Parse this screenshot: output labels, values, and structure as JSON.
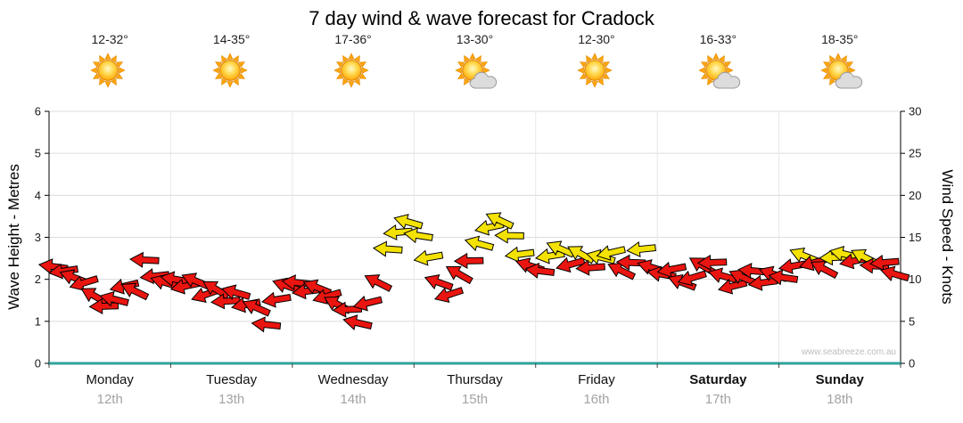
{
  "title": "7 day wind & wave forecast for Cradock",
  "watermark": "www.seabreeze.com.au",
  "days": [
    {
      "name": "Monday",
      "date": "12th",
      "temp": "12-32°",
      "icon": "sunny",
      "bold": false
    },
    {
      "name": "Tuesday",
      "date": "13th",
      "temp": "14-35°",
      "icon": "sunny",
      "bold": false
    },
    {
      "name": "Wednesday",
      "date": "14th",
      "temp": "17-36°",
      "icon": "sunny",
      "bold": false
    },
    {
      "name": "Thursday",
      "date": "15th",
      "temp": "13-30°",
      "icon": "partly-cloudy",
      "bold": false
    },
    {
      "name": "Friday",
      "date": "16th",
      "temp": "12-30°",
      "icon": "sunny",
      "bold": false
    },
    {
      "name": "Saturday",
      "date": "17th",
      "temp": "16-33°",
      "icon": "partly-cloudy",
      "bold": true
    },
    {
      "name": "Sunday",
      "date": "18th",
      "temp": "18-35°",
      "icon": "partly-cloudy",
      "bold": true
    }
  ],
  "chart_data": {
    "type": "scatter",
    "marker": "wind-arrow",
    "title": "7 day wind & wave forecast for Cradock",
    "x_axis": {
      "categories": [
        "Monday 12th",
        "Tuesday 13th",
        "Wednesday 14th",
        "Thursday 15th",
        "Friday 16th",
        "Saturday 17th",
        "Sunday 18th"
      ],
      "points_per_day": 12,
      "step_hours": 2
    },
    "y_left": {
      "label": "Wave Height - Metres",
      "range": [
        0,
        6
      ],
      "ticks": [
        0,
        1,
        2,
        3,
        4,
        5,
        6
      ]
    },
    "y_right": {
      "label": "Wind Speed - Knots",
      "range": [
        0,
        30
      ],
      "ticks": [
        0,
        5,
        10,
        15,
        20,
        25,
        30
      ]
    },
    "grid": true,
    "series": [
      {
        "name": "Wind speed (knots)",
        "values": [
          11.5,
          11,
          10.2,
          9.6,
          8,
          6.8,
          7.6,
          9.2,
          8.6,
          12.3,
          10.4,
          9.6,
          10,
          9.2,
          9.8,
          8.2,
          8.8,
          7.4,
          8.4,
          7,
          6.6,
          4.6,
          7.6,
          9.2,
          9.6,
          8.6,
          9,
          8,
          7,
          6.4,
          4.8,
          7.2,
          9.6,
          13.6,
          15.6,
          16.8,
          15.2,
          12.6,
          9.6,
          8.2,
          10.6,
          12.2,
          14.2,
          16.2,
          17,
          15.2,
          13,
          11.6,
          11,
          12.8,
          13.6,
          11.8,
          13,
          11.4,
          12.6,
          13.2,
          11,
          12,
          13.6,
          11.4,
          10.6,
          11.2,
          9.6,
          10.2,
          11.6,
          12,
          10.4,
          9.2,
          10.2,
          11,
          9.6,
          10.6,
          10.2,
          11.6,
          12.8,
          12,
          11.2,
          12.6,
          13,
          12.2,
          12.6,
          11.6,
          12,
          10.6
        ],
        "dir_deg_screen": [
          188,
          172,
          201,
          163,
          209,
          178,
          194,
          167,
          206,
          183,
          174,
          197,
          190,
          168,
          203,
          161,
          211,
          176,
          196,
          169,
          204,
          186,
          171,
          199,
          186,
          173,
          202,
          164,
          208,
          177,
          193,
          166,
          207,
          184,
          175,
          196,
          189,
          170,
          200,
          162,
          210,
          179,
          195,
          168,
          205,
          181,
          173,
          198,
          187,
          171,
          203,
          165,
          209,
          176,
          194,
          167,
          206,
          182,
          174,
          197,
          190,
          169,
          201,
          163,
          211,
          178,
          196,
          166,
          204,
          185,
          172,
          199,
          188,
          170,
          202,
          164,
          208,
          177,
          193,
          168,
          207,
          183,
          175,
          196
        ]
      }
    ],
    "colors": {
      "light_wind": "#ea1510",
      "strong_wind": "#f4e204",
      "strong_threshold_knots": 12.5,
      "baseline": "#2fa39b",
      "gridline": "#dcdcdc",
      "sun": "#ffc400",
      "cloud": "#dcdcdc"
    }
  }
}
